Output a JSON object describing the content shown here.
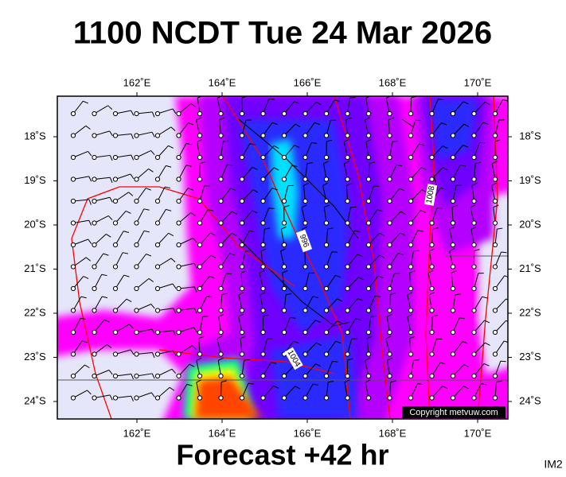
{
  "title": "1100 NCDT Tue 24 Mar 2026",
  "map": {
    "lon_labels": [
      "162˚E",
      "164˚E",
      "166˚E",
      "168˚E",
      "170˚E"
    ],
    "lat_labels": [
      "18˚S",
      "19˚S",
      "20˚S",
      "21˚S",
      "22˚S",
      "23˚S",
      "24˚S"
    ],
    "isobar_labels": [
      "996",
      "1008",
      "1004"
    ],
    "copyright": "Copyright metvuw.com"
  },
  "footer": {
    "forecast": "Forecast +42 hr",
    "image_id": "IM2"
  }
}
